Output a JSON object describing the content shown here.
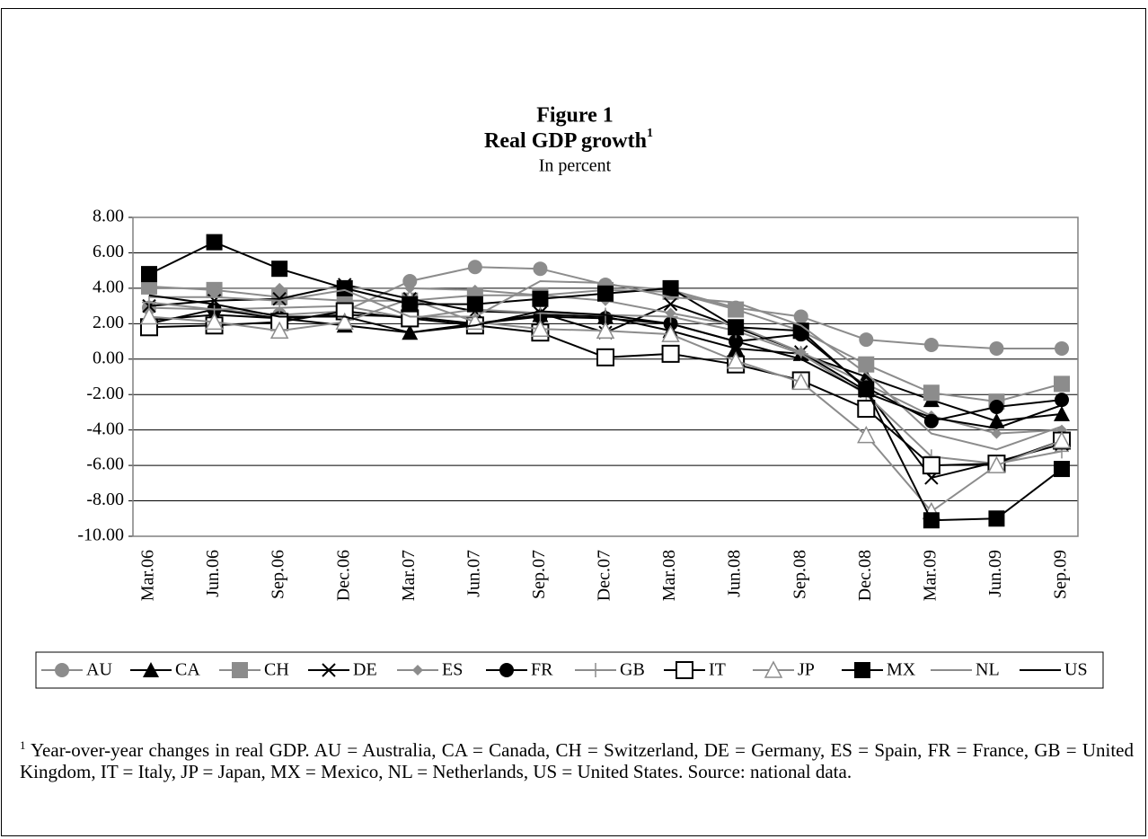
{
  "chart_data": {
    "type": "line",
    "title": "Figure 1",
    "subtitle": "Real GDP growth",
    "subtitle_note": "1",
    "unit_note": "In percent",
    "categories": [
      "Mar.06",
      "Jun.06",
      "Sep.06",
      "Dec.06",
      "Mar.07",
      "Jun.07",
      "Sep.07",
      "Dec.07",
      "Mar.08",
      "Jun.08",
      "Sep.08",
      "Dec.08",
      "Mar.09",
      "Jun.09",
      "Sep.09"
    ],
    "ylim": [
      -10,
      8
    ],
    "yticks": [
      {
        "value": -10,
        "label": "-10.00"
      },
      {
        "value": -8,
        "label": "-8.00"
      },
      {
        "value": -6,
        "label": "-6.00"
      },
      {
        "value": -4,
        "label": "-4.00"
      },
      {
        "value": -2,
        "label": "-2.00"
      },
      {
        "value": 0,
        "label": "0.00"
      },
      {
        "value": 2,
        "label": "2.00"
      },
      {
        "value": 4,
        "label": "4.00"
      },
      {
        "value": 6,
        "label": "6.00"
      },
      {
        "value": 8,
        "label": "8.00"
      }
    ],
    "grid": true,
    "series": [
      {
        "name": "AU",
        "color": "#8c8c8c",
        "marker": "circle",
        "values": [
          2.9,
          2.8,
          2.5,
          2.7,
          4.4,
          5.2,
          5.1,
          4.2,
          3.9,
          2.9,
          2.4,
          1.1,
          0.8,
          0.6,
          0.6
        ]
      },
      {
        "name": "CA",
        "color": "#000000",
        "marker": "triangle",
        "values": [
          2.2,
          2.5,
          2.3,
          1.9,
          1.5,
          2.0,
          2.5,
          2.4,
          1.6,
          0.6,
          0.3,
          -1.0,
          -2.3,
          -3.5,
          -3.1
        ]
      },
      {
        "name": "CH",
        "color": "#8c8c8c",
        "marker": "square",
        "values": [
          4.1,
          3.9,
          3.5,
          3.3,
          3.3,
          3.6,
          3.6,
          3.9,
          3.8,
          2.8,
          1.6,
          -0.3,
          -1.9,
          -2.4,
          -1.4
        ]
      },
      {
        "name": "DE",
        "color": "#000000",
        "marker": "x",
        "values": [
          3.0,
          3.3,
          3.4,
          4.2,
          3.4,
          2.7,
          2.6,
          1.5,
          3.1,
          1.8,
          0.4,
          -1.8,
          -6.7,
          -5.8,
          -4.8
        ]
      },
      {
        "name": "ES",
        "color": "#8c8c8c",
        "marker": "diamond",
        "values": [
          4.0,
          4.0,
          4.0,
          4.0,
          4.0,
          3.9,
          3.6,
          3.3,
          2.6,
          1.9,
          0.4,
          -1.4,
          -3.2,
          -4.2,
          -4.0
        ]
      },
      {
        "name": "FR",
        "color": "#000000",
        "marker": "circle",
        "values": [
          2.0,
          2.8,
          2.3,
          2.5,
          2.4,
          2.0,
          2.4,
          2.3,
          2.0,
          1.0,
          1.4,
          -1.6,
          -3.5,
          -2.7,
          -2.3
        ]
      },
      {
        "name": "GB",
        "color": "#8c8c8c",
        "marker": "plus",
        "values": [
          3.2,
          2.8,
          2.9,
          3.0,
          2.3,
          2.8,
          2.6,
          2.5,
          2.4,
          1.6,
          0.3,
          -2.0,
          -5.5,
          -5.9,
          -5.2
        ]
      },
      {
        "name": "IT",
        "color": "#000000",
        "marker": "open-square",
        "values": [
          1.8,
          1.9,
          2.1,
          2.7,
          2.3,
          1.9,
          1.5,
          0.1,
          0.3,
          -0.3,
          -1.2,
          -2.8,
          -6.0,
          -5.9,
          -4.6
        ]
      },
      {
        "name": "JP",
        "color": "#8c8c8c",
        "marker": "open-triangle",
        "values": [
          2.4,
          2.1,
          1.6,
          2.1,
          3.4,
          2.1,
          1.7,
          1.6,
          1.4,
          -0.1,
          -1.3,
          -4.3,
          -8.6,
          -6.0,
          -4.6
        ]
      },
      {
        "name": "MX",
        "color": "#000000",
        "marker": "square",
        "values": [
          4.8,
          6.6,
          5.1,
          4.0,
          3.1,
          3.1,
          3.4,
          3.7,
          4.0,
          1.8,
          1.6,
          -1.7,
          -9.1,
          -9.0,
          -6.2
        ]
      },
      {
        "name": "NL",
        "color": "#8c8c8c",
        "marker": "none",
        "values": [
          3.5,
          3.5,
          3.3,
          3.9,
          2.4,
          2.4,
          4.4,
          4.3,
          3.5,
          3.2,
          1.9,
          -0.8,
          -4.2,
          -5.1,
          -3.8
        ]
      },
      {
        "name": "US",
        "color": "#000000",
        "marker": "none",
        "values": [
          3.6,
          3.1,
          2.4,
          2.4,
          1.5,
          1.9,
          2.7,
          2.5,
          2.0,
          1.0,
          0.0,
          -1.9,
          -3.3,
          -3.9,
          -2.6
        ]
      }
    ],
    "footnote_mark": "1",
    "footnote": "Year-over-year changes in real GDP. AU = Australia, CA = Canada, CH = Switzerland, DE = Germany, ES = Spain, FR = France, GB = United Kingdom, IT = Italy, JP = Japan, MX = Mexico, NL = Netherlands, US = United States. Source: national data."
  }
}
